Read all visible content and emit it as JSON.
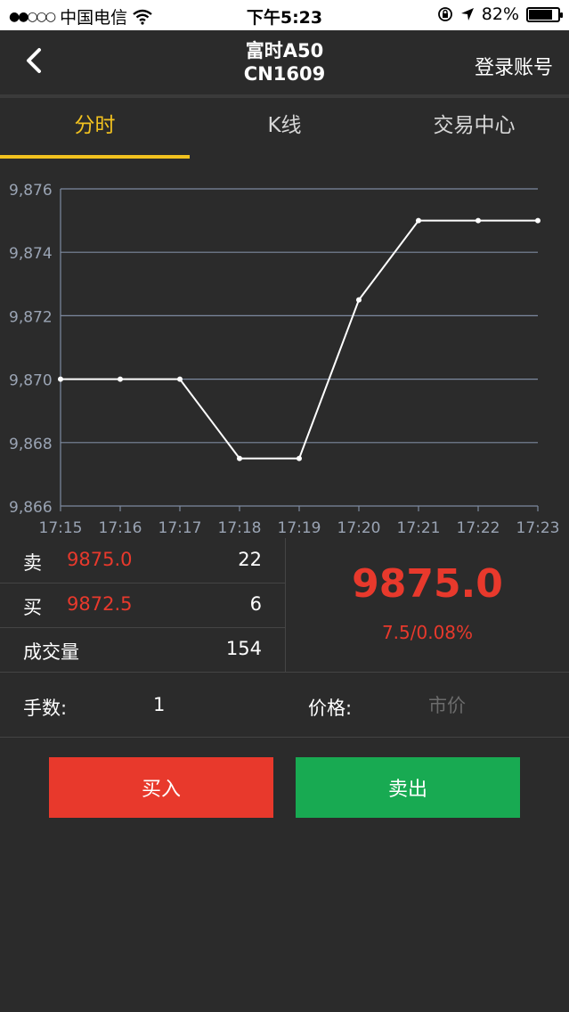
{
  "status_bar": {
    "carrier": "中国电信",
    "signal_dots": "●●○○○",
    "time": "下午5:23",
    "battery_percent": "82%",
    "battery_level": 0.82
  },
  "nav": {
    "title_line1": "富时A50",
    "title_line2": "CN1609",
    "login_label": "登录账号"
  },
  "tabs": [
    {
      "label": "分时",
      "active": true
    },
    {
      "label": "K线",
      "active": false
    },
    {
      "label": "交易中心",
      "active": false
    }
  ],
  "chart_data": {
    "type": "line",
    "x": [
      "17:15",
      "17:16",
      "17:17",
      "17:18",
      "17:19",
      "17:20",
      "17:21",
      "17:22",
      "17:23"
    ],
    "series": [
      {
        "values": [
          9870.0,
          9870.0,
          9870.0,
          9867.5,
          9867.5,
          9872.5,
          9875.0,
          9875.0,
          9875.0
        ]
      }
    ],
    "y_ticks": [
      "9,866",
      "9,868",
      "9,870",
      "9,872",
      "9,874",
      "9,876"
    ],
    "y_tick_values": [
      9866,
      9868,
      9870,
      9872,
      9874,
      9876
    ],
    "ylim": [
      9866,
      9876
    ],
    "grid": true,
    "line_color": "#ffffff",
    "grid_color": "#7d8aa0"
  },
  "quote": {
    "ask_label": "卖",
    "ask_price": "9875.0",
    "ask_qty": "22",
    "bid_label": "买",
    "bid_price": "9872.5",
    "bid_qty": "6",
    "volume_label": "成交量",
    "volume_value": "154",
    "last_price": "9875.0",
    "change": "7.5/0.08%"
  },
  "order": {
    "lots_label": "手数:",
    "lots_value": "1",
    "price_label": "价格:",
    "price_placeholder": "市价"
  },
  "buttons": {
    "buy_label": "买入",
    "sell_label": "卖出"
  },
  "colors": {
    "up_red": "#e8392c",
    "sell_green": "#18aa52",
    "accent_yellow": "#f2c21f"
  }
}
